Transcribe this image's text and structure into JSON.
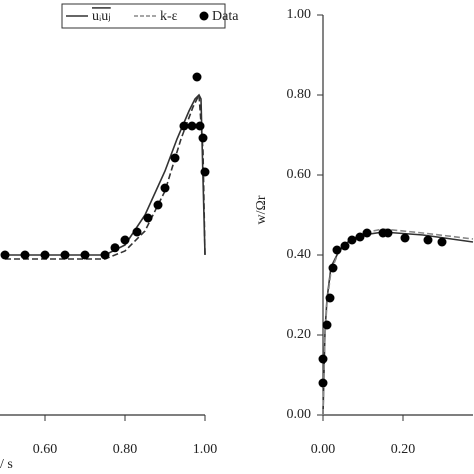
{
  "chart_data": [
    {
      "type": "line",
      "x_label": "/ s",
      "xlim": [
        0.5,
        1.0
      ],
      "ylim": [
        0,
        1.0
      ],
      "xticks": [
        {
          "value": 0.6,
          "label": "0.60"
        },
        {
          "value": 0.8,
          "label": "0.80"
        },
        {
          "value": 1.0,
          "label": "1.00"
        }
      ],
      "legend": "top",
      "series": [
        {
          "name": "uᵢuⱼ",
          "color": "#333333",
          "style": "solid",
          "x": [
            0.5,
            0.6,
            0.7,
            0.75,
            0.8,
            0.85,
            0.9,
            0.93,
            0.96,
            0.975,
            0.985,
            0.99,
            0.995,
            1.0
          ],
          "values": [
            0.4,
            0.4,
            0.4,
            0.4,
            0.425,
            0.5,
            0.61,
            0.69,
            0.76,
            0.79,
            0.8,
            0.79,
            0.59,
            0.4
          ]
        },
        {
          "name": "k-ε",
          "color": "#333333",
          "style": "dashed",
          "x": [
            0.5,
            0.6,
            0.7,
            0.75,
            0.8,
            0.85,
            0.9,
            0.94,
            0.97,
            0.985,
            0.995,
            1.0
          ],
          "values": [
            0.39,
            0.39,
            0.39,
            0.39,
            0.41,
            0.46,
            0.56,
            0.69,
            0.77,
            0.8,
            0.66,
            0.4
          ]
        },
        {
          "name": "Data",
          "color": "#000000",
          "style": "markers",
          "x": [
            0.5,
            0.55,
            0.6,
            0.65,
            0.7,
            0.75,
            0.775,
            0.8,
            0.83,
            0.8575,
            0.8825,
            0.9,
            0.925,
            0.9475,
            0.9675,
            0.98,
            0.9875,
            0.995,
            1.0
          ],
          "values": [
            0.4,
            0.4,
            0.4,
            0.4,
            0.4,
            0.4,
            0.418,
            0.4375,
            0.4575,
            0.4925,
            0.525,
            0.5675,
            0.6425,
            0.7225,
            0.7225,
            0.845,
            0.7225,
            0.6925,
            0.6075
          ]
        }
      ]
    },
    {
      "type": "line",
      "y_label": "w/Ωr",
      "xlim": [
        0,
        0.375
      ],
      "ylim": [
        0,
        1.0
      ],
      "xticks": [
        {
          "value": 0,
          "label": "0.00"
        },
        {
          "value": 0.2,
          "label": "0.20"
        }
      ],
      "yticks": [
        {
          "value": 0,
          "label": "0.00"
        },
        {
          "value": 0.2,
          "label": "0.20"
        },
        {
          "value": 0.4,
          "label": "0.40"
        },
        {
          "value": 0.6,
          "label": "0.60"
        },
        {
          "value": 0.8,
          "label": "0.80"
        },
        {
          "value": 1.0,
          "label": "1.00"
        }
      ],
      "series": [
        {
          "color": "#333333",
          "style": "solid",
          "x": [
            0,
            0.005,
            0.01,
            0.02,
            0.04,
            0.07,
            0.1,
            0.15,
            0.25,
            0.375
          ],
          "values": [
            0,
            0.21,
            0.29,
            0.37,
            0.41,
            0.44,
            0.45,
            0.4575,
            0.45,
            0.4325
          ]
        },
        {
          "color": "#888888",
          "style": "dashed",
          "x": [
            0,
            0.005,
            0.01,
            0.02,
            0.04,
            0.07,
            0.1,
            0.15,
            0.25,
            0.375
          ],
          "values": [
            0,
            0.2,
            0.28,
            0.36,
            0.41,
            0.44,
            0.455,
            0.465,
            0.455,
            0.44
          ]
        },
        {
          "color": "#000000",
          "style": "markers",
          "x": [
            0,
            0,
            0.01,
            0.0175,
            0.025,
            0.035,
            0.055,
            0.0725,
            0.0925,
            0.11,
            0.15,
            0.1625,
            0.205,
            0.2625,
            0.2975
          ],
          "values": [
            0.08,
            0.14,
            0.225,
            0.2925,
            0.3675,
            0.4125,
            0.4225,
            0.4375,
            0.445,
            0.455,
            0.455,
            0.455,
            0.4425,
            0.4375,
            0.4325
          ]
        }
      ]
    }
  ]
}
